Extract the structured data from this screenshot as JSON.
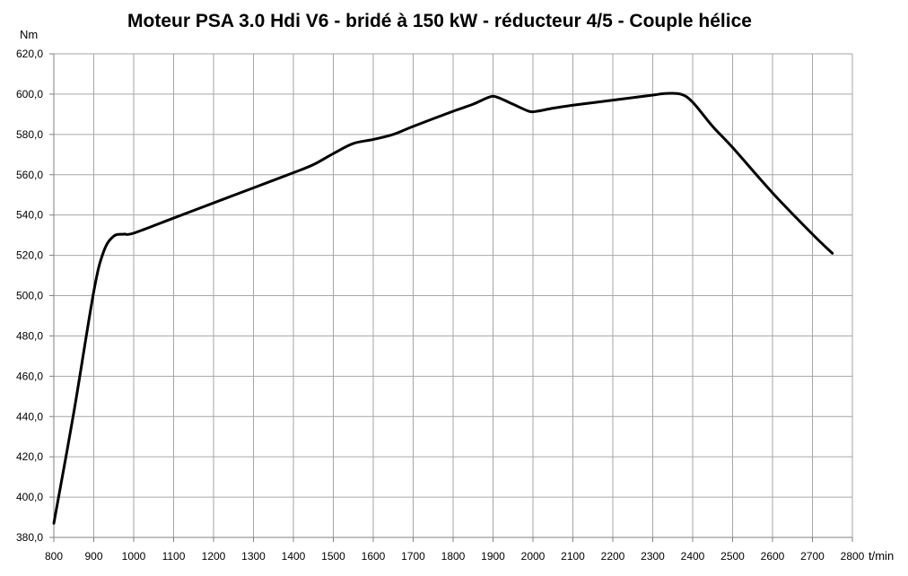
{
  "chart_data": {
    "type": "line",
    "title": "Moteur PSA 3.0 Hdi V6 - bridé à 150 kW - réducteur 4/5 - Couple hélice",
    "ylabel": "Nm",
    "xlabel": "t/min",
    "xlim": [
      800,
      2800
    ],
    "ylim": [
      380,
      620
    ],
    "xticks": [
      800,
      900,
      1000,
      1100,
      1200,
      1300,
      1400,
      1500,
      1600,
      1700,
      1800,
      1900,
      2000,
      2100,
      2200,
      2300,
      2400,
      2500,
      2600,
      2700,
      2800
    ],
    "yticks": [
      "380,0",
      "400,0",
      "420,0",
      "440,0",
      "460,0",
      "480,0",
      "500,0",
      "520,0",
      "540,0",
      "560,0",
      "580,0",
      "600,0",
      "620,0"
    ],
    "grid": true,
    "series": [
      {
        "x": [
          800,
          850,
          900,
          925,
          950,
          975,
          1000,
          1100,
          1200,
          1300,
          1400,
          1450,
          1500,
          1550,
          1600,
          1650,
          1700,
          1800,
          1850,
          1890,
          1910,
          1950,
          1990,
          2010,
          2050,
          2100,
          2200,
          2300,
          2330,
          2370,
          2400,
          2450,
          2500,
          2600,
          2700,
          2750
        ],
        "y": [
          387,
          442,
          502,
          522,
          529.5,
          530.5,
          531,
          538.5,
          546,
          553.5,
          561,
          565,
          570.5,
          575.5,
          577.5,
          580,
          584,
          591.5,
          595,
          598.5,
          598.5,
          595,
          591.5,
          591.5,
          593,
          594.5,
          597,
          599.5,
          600.3,
          600,
          596,
          584,
          573.5,
          551,
          530.5,
          521
        ]
      }
    ],
    "colors": {
      "line": "#000000",
      "grid": "#a6a6a6",
      "axis": "#808080"
    }
  }
}
